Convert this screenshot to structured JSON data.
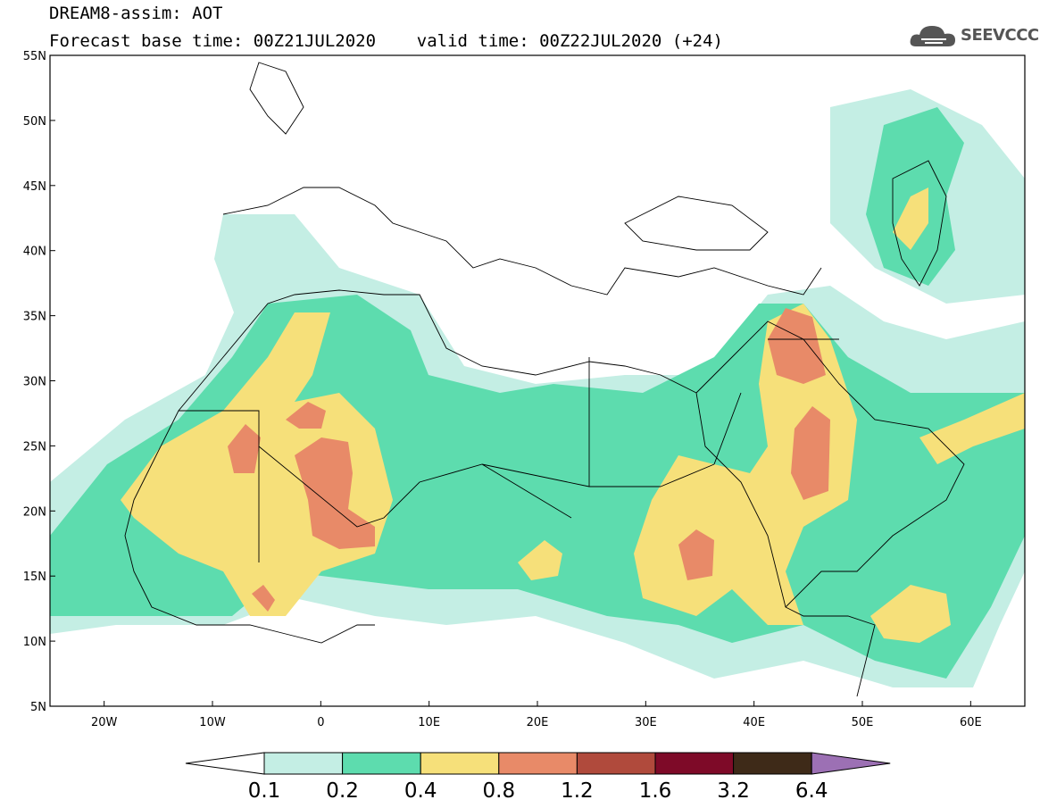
{
  "header": {
    "line1": "DREAM8-assim: AOT",
    "line2": "Forecast base time: 00Z21JUL2020    valid time: 00Z22JUL2020 (+24)"
  },
  "logo": {
    "text": "SEEVCCC",
    "icon": "cloud-icon"
  },
  "map": {
    "lon_range": [
      -25,
      65
    ],
    "lat_range": [
      5,
      55
    ],
    "lon_ticks": [
      "20W",
      "10W",
      "0",
      "10E",
      "20E",
      "30E",
      "40E",
      "50E",
      "60E"
    ],
    "lat_ticks": [
      "55N",
      "50N",
      "45N",
      "40N",
      "35N",
      "30N",
      "25N",
      "20N",
      "15N",
      "10N",
      "5N"
    ]
  },
  "colorbar": {
    "labels": [
      "0.1",
      "0.2",
      "0.4",
      "0.8",
      "1.2",
      "1.6",
      "3.2",
      "6.4"
    ],
    "colors": [
      "#c4eee4",
      "#5ddcae",
      "#f6e07a",
      "#e88a68",
      "#b04a3c",
      "#7e0a28",
      "#3e2a18",
      "#9c70b4"
    ]
  }
}
